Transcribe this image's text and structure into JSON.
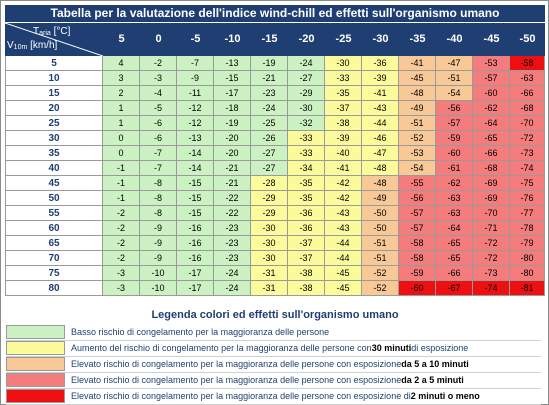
{
  "title": "Tabella per la valutazione dell'indice wind-chill ed effetti sull'organismo umano",
  "header": {
    "temp_label": "T",
    "temp_sub": "aria",
    "temp_unit": " [°C]",
    "wind_label": "V",
    "wind_sub": "10m",
    "wind_unit": " [km/h]"
  },
  "temperatures": [
    "5",
    "0",
    "-5",
    "-10",
    "-15",
    "-20",
    "-25",
    "-30",
    "-35",
    "-40",
    "-45",
    "-50"
  ],
  "wind_speeds": [
    "5",
    "10",
    "15",
    "20",
    "25",
    "30",
    "35",
    "40",
    "45",
    "50",
    "55",
    "60",
    "65",
    "70",
    "75",
    "80"
  ],
  "values": [
    [
      "4",
      "-2",
      "-7",
      "-13",
      "-19",
      "-24",
      "-30",
      "-36",
      "-41",
      "-47",
      "-53",
      "-58"
    ],
    [
      "3",
      "-3",
      "-9",
      "-15",
      "-21",
      "-27",
      "-33",
      "-39",
      "-45",
      "-51",
      "-57",
      "-63"
    ],
    [
      "2",
      "-4",
      "-11",
      "-17",
      "-23",
      "-29",
      "-35",
      "-41",
      "-48",
      "-54",
      "-60",
      "-66"
    ],
    [
      "1",
      "-5",
      "-12",
      "-18",
      "-24",
      "-30",
      "-37",
      "-43",
      "-49",
      "-56",
      "-62",
      "-68"
    ],
    [
      "1",
      "-6",
      "-12",
      "-19",
      "-25",
      "-32",
      "-38",
      "-44",
      "-51",
      "-57",
      "-64",
      "-70"
    ],
    [
      "0",
      "-6",
      "-13",
      "-20",
      "-26",
      "-33",
      "-39",
      "-46",
      "-52",
      "-59",
      "-65",
      "-72"
    ],
    [
      "0",
      "-7",
      "-14",
      "-20",
      "-27",
      "-33",
      "-40",
      "-47",
      "-53",
      "-60",
      "-66",
      "-73"
    ],
    [
      "-1",
      "-7",
      "-14",
      "-21",
      "-27",
      "-34",
      "-41",
      "-48",
      "-54",
      "-61",
      "-68",
      "-74"
    ],
    [
      "-1",
      "-8",
      "-15",
      "-21",
      "-28",
      "-35",
      "-42",
      "-48",
      "-55",
      "-62",
      "-69",
      "-75"
    ],
    [
      "-1",
      "-8",
      "-15",
      "-22",
      "-29",
      "-35",
      "-42",
      "-49",
      "-56",
      "-63",
      "-69",
      "-76"
    ],
    [
      "-2",
      "-8",
      "-15",
      "-22",
      "-29",
      "-36",
      "-43",
      "-50",
      "-57",
      "-63",
      "-70",
      "-77"
    ],
    [
      "-2",
      "-9",
      "-16",
      "-23",
      "-30",
      "-36",
      "-43",
      "-50",
      "-57",
      "-64",
      "-71",
      "-78"
    ],
    [
      "-2",
      "-9",
      "-16",
      "-23",
      "-30",
      "-37",
      "-44",
      "-51",
      "-58",
      "-65",
      "-72",
      "-79"
    ],
    [
      "-2",
      "-9",
      "-16",
      "-23",
      "-30",
      "-37",
      "-44",
      "-51",
      "-58",
      "-65",
      "-72",
      "-80"
    ],
    [
      "-3",
      "-10",
      "-17",
      "-24",
      "-31",
      "-38",
      "-45",
      "-52",
      "-59",
      "-66",
      "-73",
      "-80"
    ],
    [
      "-3",
      "-10",
      "-17",
      "-24",
      "-31",
      "-38",
      "-45",
      "-52",
      "-60",
      "-67",
      "-74",
      "-81"
    ]
  ],
  "risk_levels": [
    [
      1,
      1,
      1,
      1,
      1,
      1,
      2,
      2,
      3,
      3,
      4,
      5
    ],
    [
      1,
      1,
      1,
      1,
      1,
      1,
      2,
      2,
      3,
      3,
      4,
      4
    ],
    [
      1,
      1,
      1,
      1,
      1,
      1,
      2,
      2,
      3,
      3,
      4,
      4
    ],
    [
      1,
      1,
      1,
      1,
      1,
      1,
      2,
      2,
      3,
      4,
      4,
      4
    ],
    [
      1,
      1,
      1,
      1,
      1,
      1,
      2,
      2,
      3,
      4,
      4,
      4
    ],
    [
      1,
      1,
      1,
      1,
      1,
      2,
      2,
      2,
      3,
      4,
      4,
      4
    ],
    [
      1,
      1,
      1,
      1,
      1,
      2,
      2,
      2,
      3,
      4,
      4,
      4
    ],
    [
      1,
      1,
      1,
      1,
      1,
      2,
      2,
      2,
      3,
      4,
      4,
      4
    ],
    [
      1,
      1,
      1,
      1,
      2,
      2,
      2,
      3,
      4,
      4,
      4,
      4
    ],
    [
      1,
      1,
      1,
      1,
      2,
      2,
      2,
      3,
      4,
      4,
      4,
      4
    ],
    [
      1,
      1,
      1,
      1,
      2,
      2,
      2,
      3,
      4,
      4,
      4,
      4
    ],
    [
      1,
      1,
      1,
      1,
      2,
      2,
      2,
      3,
      4,
      4,
      4,
      4
    ],
    [
      1,
      1,
      1,
      1,
      2,
      2,
      2,
      3,
      4,
      4,
      4,
      4
    ],
    [
      1,
      1,
      1,
      1,
      2,
      2,
      2,
      3,
      4,
      4,
      4,
      4
    ],
    [
      1,
      1,
      1,
      1,
      2,
      2,
      2,
      3,
      4,
      4,
      4,
      4
    ],
    [
      1,
      1,
      1,
      1,
      2,
      2,
      2,
      3,
      5,
      5,
      5,
      5
    ]
  ],
  "colors": {
    "header_bg": "#1f3f73",
    "level_1": "#ccf2c4",
    "level_2": "#fbfb9c",
    "level_3": "#f8c896",
    "level_4": "#f47c7c",
    "level_5": "#ee1010"
  },
  "legend": {
    "title": "Legenda colori ed effetti sull'organismo umano",
    "items": [
      {
        "level": 1,
        "text": "Basso rischio di congelamento per la maggioranza delle persone",
        "bold": ""
      },
      {
        "level": 2,
        "text": "Aumento del rischio di congelamento per la maggioranza delle persone con ",
        "bold": "30 minuti",
        "after": " di esposizione"
      },
      {
        "level": 3,
        "text": "Elevato rischio di congelamento per la maggioranza delle persone con esposizione ",
        "bold": "da 5 a 10 minuti"
      },
      {
        "level": 4,
        "text": "Elevato rischio di congelamento per la maggioranza delle persone con esposizione ",
        "bold": "da 2 a 5 minuti"
      },
      {
        "level": 5,
        "text": "Elevato rischio di congelamento per la maggioranza delle persone con esposizione di ",
        "bold": "2 minuti o meno"
      }
    ]
  }
}
